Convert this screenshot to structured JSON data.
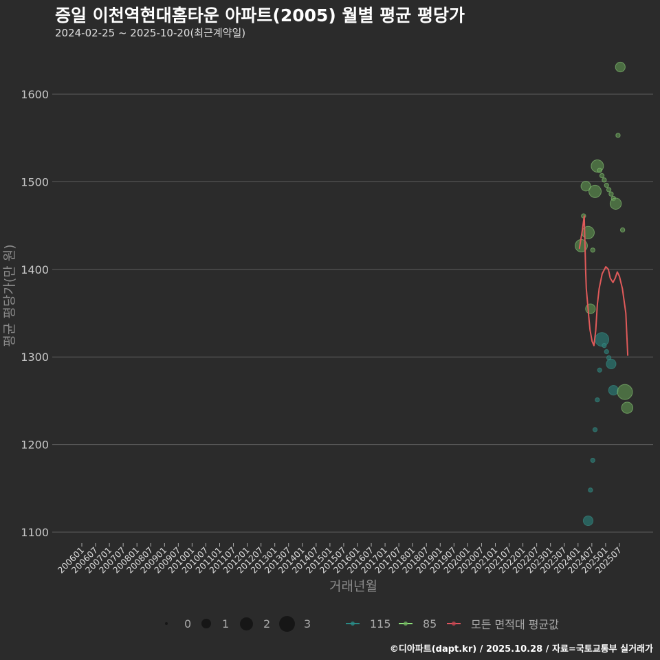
{
  "header": {
    "title": "증일 이천역현대홈타운 아파트(2005) 월별 평균 평당가",
    "subtitle": "2024-02-25 ~ 2025-10-20(최근계약일)"
  },
  "legend": {
    "size_items": [
      {
        "label": "0",
        "size": 0
      },
      {
        "label": "1",
        "size": 1
      },
      {
        "label": "2",
        "size": 2
      },
      {
        "label": "3",
        "size": 3
      }
    ],
    "color_items": [
      {
        "label": "115",
        "color": "#2a8a86"
      },
      {
        "label": "85",
        "color": "#8ee07a"
      },
      {
        "label": "모든 면적대 평균값",
        "color": "#e0555f"
      }
    ]
  },
  "footer": {
    "credit": "©디아파트(dapt.kr) / 2025.10.28 / 자료=국토교통부 실거래가"
  },
  "chart_data": {
    "type": "scatter",
    "title": "증일 이천역현대홈타운 아파트(2005) 월별 평균 평당가",
    "subtitle": "2024-02-25 ~ 2025-10-20(최근계약일)",
    "xlabel": "거래년월",
    "ylabel": "평균 평당가(만 원)",
    "ylim": [
      1090,
      1645
    ],
    "xlim": [
      "2004-12",
      "2026-09"
    ],
    "grid": true,
    "legend_position": "bottom",
    "y_ticks": [
      1100,
      1200,
      1300,
      1400,
      1500,
      1600
    ],
    "x_ticks": [
      "200601",
      "200607",
      "200701",
      "200707",
      "200801",
      "200807",
      "200901",
      "200907",
      "201001",
      "201007",
      "201101",
      "201107",
      "201201",
      "201207",
      "201301",
      "201307",
      "201401",
      "201407",
      "201501",
      "201507",
      "201601",
      "201607",
      "201701",
      "201707",
      "201801",
      "201807",
      "201901",
      "201907",
      "202001",
      "202007",
      "202101",
      "202107",
      "202201",
      "202207",
      "202301",
      "202307",
      "202401",
      "202407",
      "202501",
      "202507"
    ],
    "size_legend": [
      0,
      1,
      2,
      3
    ],
    "series": [
      {
        "name": "115",
        "kind": "bubble",
        "color": "#2a8a86",
        "points": [
          {
            "x": "2024-05",
            "y": 1113,
            "size": 1.5
          },
          {
            "x": "2024-06",
            "y": 1148,
            "size": 0.3
          },
          {
            "x": "2024-07",
            "y": 1182,
            "size": 0.3
          },
          {
            "x": "2024-08",
            "y": 1217,
            "size": 0.3
          },
          {
            "x": "2024-09",
            "y": 1251,
            "size": 0.3
          },
          {
            "x": "2024-10",
            "y": 1285,
            "size": 0.3
          },
          {
            "x": "2024-11",
            "y": 1320,
            "size": 3.0
          },
          {
            "x": "2024-12",
            "y": 1313,
            "size": 0.3
          },
          {
            "x": "2025-01",
            "y": 1306,
            "size": 0.3
          },
          {
            "x": "2025-02",
            "y": 1299,
            "size": 0.3
          },
          {
            "x": "2025-03",
            "y": 1292,
            "size": 1.5
          },
          {
            "x": "2025-04",
            "y": 1262,
            "size": 1.5
          }
        ]
      },
      {
        "name": "85",
        "kind": "bubble",
        "color": "#8ee07a",
        "points": [
          {
            "x": "2024-02",
            "y": 1427,
            "size": 2.4
          },
          {
            "x": "2024-03",
            "y": 1461,
            "size": 0.3
          },
          {
            "x": "2024-04",
            "y": 1495,
            "size": 1.5
          },
          {
            "x": "2024-05",
            "y": 1442,
            "size": 2.4
          },
          {
            "x": "2024-06",
            "y": 1355,
            "size": 1.5
          },
          {
            "x": "2024-07",
            "y": 1422,
            "size": 0.3
          },
          {
            "x": "2024-08",
            "y": 1489,
            "size": 2.4
          },
          {
            "x": "2024-09",
            "y": 1518,
            "size": 2.4
          },
          {
            "x": "2024-10",
            "y": 1513,
            "size": 0.3
          },
          {
            "x": "2024-11",
            "y": 1507,
            "size": 0.3
          },
          {
            "x": "2024-12",
            "y": 1502,
            "size": 0.3
          },
          {
            "x": "2025-01",
            "y": 1496,
            "size": 0.3
          },
          {
            "x": "2025-02",
            "y": 1491,
            "size": 0.3
          },
          {
            "x": "2025-03",
            "y": 1486,
            "size": 0.3
          },
          {
            "x": "2025-04",
            "y": 1481,
            "size": 0.3
          },
          {
            "x": "2025-05",
            "y": 1475,
            "size": 2.0
          },
          {
            "x": "2025-06",
            "y": 1553,
            "size": 0.3
          },
          {
            "x": "2025-07",
            "y": 1631,
            "size": 1.5
          },
          {
            "x": "2025-08",
            "y": 1445,
            "size": 0.3
          },
          {
            "x": "2025-09",
            "y": 1260,
            "size": 3.6
          },
          {
            "x": "2025-10",
            "y": 1242,
            "size": 2.0
          }
        ]
      },
      {
        "name": "모든 면적대 평균값",
        "kind": "line",
        "color": "#e05a5a",
        "points": [
          {
            "x": "2024-01-19",
            "y": 1424
          },
          {
            "x": "2024-02-28",
            "y": 1445
          },
          {
            "x": "2024-03-22",
            "y": 1461
          },
          {
            "x": "2024-04-10",
            "y": 1400
          },
          {
            "x": "2024-04-19",
            "y": 1378
          },
          {
            "x": "2024-05-22",
            "y": 1345
          },
          {
            "x": "2024-06-07",
            "y": 1331
          },
          {
            "x": "2024-07-04",
            "y": 1318
          },
          {
            "x": "2024-07-28",
            "y": 1313
          },
          {
            "x": "2024-08-22",
            "y": 1330
          },
          {
            "x": "2024-09-13",
            "y": 1360
          },
          {
            "x": "2024-10-07",
            "y": 1378
          },
          {
            "x": "2024-11-16",
            "y": 1395
          },
          {
            "x": "2025-01-04",
            "y": 1403
          },
          {
            "x": "2025-02-07",
            "y": 1400
          },
          {
            "x": "2025-03-01",
            "y": 1390
          },
          {
            "x": "2025-04-07",
            "y": 1385
          },
          {
            "x": "2025-05-07",
            "y": 1390
          },
          {
            "x": "2025-06-04",
            "y": 1397
          },
          {
            "x": "2025-07-01",
            "y": 1392
          },
          {
            "x": "2025-08-10",
            "y": 1378
          },
          {
            "x": "2025-09-25",
            "y": 1350
          },
          {
            "x": "2025-10-20",
            "y": 1302
          }
        ]
      }
    ]
  }
}
